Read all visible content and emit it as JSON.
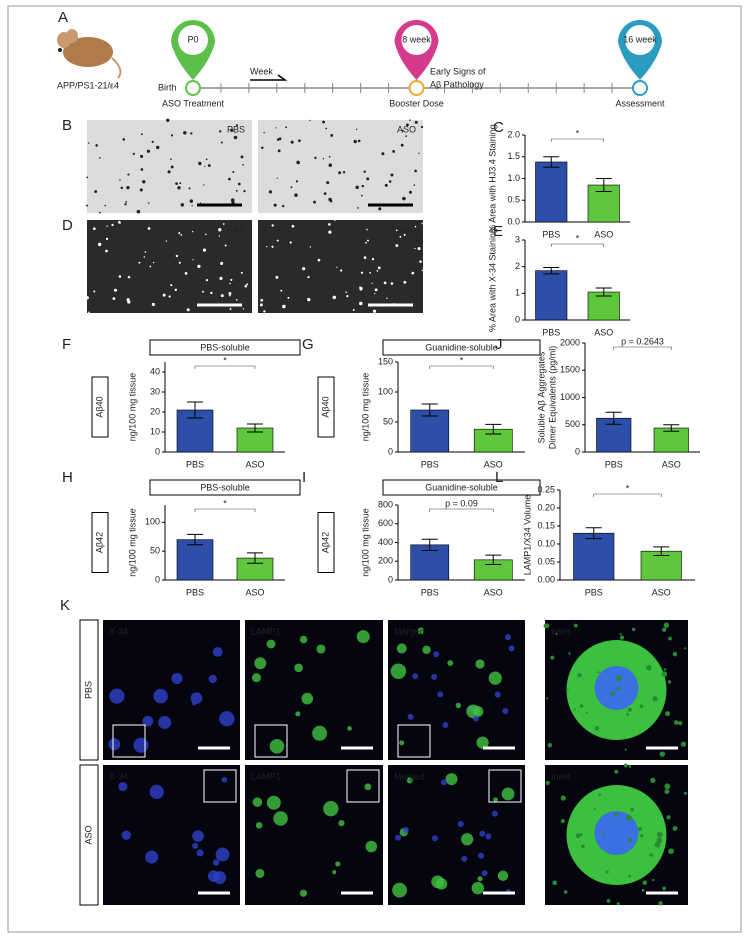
{
  "timeline": {
    "label": "A",
    "strain": "APP/PS1-21/ε4",
    "birth": "Birth",
    "week": "Week",
    "pathology": [
      "Early Signs of",
      "Aβ Pathology"
    ],
    "pins": [
      {
        "tag": "P0",
        "event": "ASO Treatment",
        "color": "#5cbf4a"
      },
      {
        "tag": "8 week",
        "event": "Booster Dose",
        "color": "#d63a8a"
      },
      {
        "tag": "16 week",
        "event": "Assessment",
        "color": "#2a9cc2"
      }
    ]
  },
  "images": {
    "B": {
      "label": "B",
      "left": "PBS",
      "right": "ASO"
    },
    "D": {
      "label": "D",
      "left": "PBS",
      "right": "ASO"
    },
    "K": {
      "label": "K",
      "rows": [
        "PBS",
        "ASO"
      ],
      "columns": [
        "X-34",
        "LAMP1",
        "Merged",
        "Inset"
      ]
    }
  },
  "chart_data": [
    {
      "type": "bar",
      "label": "C",
      "categories": [
        "PBS",
        "ASO"
      ],
      "values": [
        1.38,
        0.85
      ],
      "errors": [
        0.12,
        0.15
      ],
      "colors": [
        "#2e4fa8",
        "#5fc73c"
      ],
      "ylabel": "% Area with HJ3.4 Staining",
      "ylim": [
        0,
        2
      ],
      "yticks": [
        {
          "value": 0,
          "label": "0.0"
        },
        0.5,
        {
          "value": 1,
          "label": "1.0"
        },
        1.5,
        {
          "value": 2,
          "label": "2.0"
        }
      ],
      "annotation": "*"
    },
    {
      "type": "bar",
      "label": "E",
      "categories": [
        "PBS",
        "ASO"
      ],
      "values": [
        1.85,
        1.05
      ],
      "errors": [
        0.12,
        0.15
      ],
      "colors": [
        "#2e4fa8",
        "#5fc73c"
      ],
      "ylabel": "% Area with X-34 Staining",
      "ylim": [
        0,
        3
      ],
      "yticks": [
        0,
        1,
        2,
        3
      ],
      "annotation": "*"
    },
    {
      "type": "bar",
      "label": "F",
      "title": "PBS-soluble",
      "group": "Aβ40",
      "categories": [
        "PBS",
        "ASO"
      ],
      "values": [
        21,
        12
      ],
      "errors": [
        4,
        2
      ],
      "colors": [
        "#2e4fa8",
        "#5fc73c"
      ],
      "ylabel": "ng/100 mg tissue",
      "ylim": [
        0,
        45
      ],
      "yticks": [
        0,
        10,
        20,
        30,
        40
      ],
      "annotation": "*"
    },
    {
      "type": "bar",
      "label": "G",
      "title": "Guanidine-soluble",
      "group": "Aβ40",
      "categories": [
        "PBS",
        "ASO"
      ],
      "values": [
        70,
        38
      ],
      "errors": [
        10,
        8
      ],
      "colors": [
        "#2e4fa8",
        "#5fc73c"
      ],
      "ylabel": "ng/100 mg tissue",
      "ylim": [
        0,
        150
      ],
      "yticks": [
        0,
        50,
        100,
        150
      ],
      "annotation": "*"
    },
    {
      "type": "bar",
      "label": "J",
      "categories": [
        "PBS",
        "ASO"
      ],
      "values": [
        620,
        440
      ],
      "errors": [
        110,
        60
      ],
      "colors": [
        "#2e4fa8",
        "#5fc73c"
      ],
      "ylabel": [
        "Soluble Aβ Aggregates",
        "Dimer Equivalents (pg/ml)"
      ],
      "ylim": [
        0,
        2000
      ],
      "yticks": [
        0,
        500,
        1000,
        1500,
        2000
      ],
      "annotation": "p = 0.2643"
    },
    {
      "type": "bar",
      "label": "H",
      "title": "PBS-soluble",
      "group": "Aβ42",
      "categories": [
        "PBS",
        "ASO"
      ],
      "values": [
        70,
        38
      ],
      "errors": [
        9,
        9
      ],
      "colors": [
        "#2e4fa8",
        "#5fc73c"
      ],
      "ylabel": "ng/100 mg tissue",
      "ylim": [
        0,
        130
      ],
      "yticks": [
        0,
        50,
        100
      ],
      "annotation": "*"
    },
    {
      "type": "bar",
      "label": "I",
      "title": "Guanidine-soluble",
      "group": "Aβ42",
      "categories": [
        "PBS",
        "ASO"
      ],
      "values": [
        375,
        215
      ],
      "errors": [
        60,
        50
      ],
      "colors": [
        "#2e4fa8",
        "#5fc73c"
      ],
      "ylabel": "ng/100 mg tissue",
      "ylim": [
        0,
        800
      ],
      "yticks": [
        0,
        200,
        400,
        600,
        800
      ],
      "annotation": "p = 0.09"
    },
    {
      "type": "bar",
      "label": "L",
      "categories": [
        "PBS",
        "ASO"
      ],
      "values": [
        0.13,
        0.08
      ],
      "errors": [
        0.015,
        0.012
      ],
      "colors": [
        "#2e4fa8",
        "#5fc73c"
      ],
      "ylabel": "LAMP1/X34 Volume",
      "ylim": [
        0,
        0.25
      ],
      "yticks": [
        {
          "value": 0,
          "label": "0.00"
        },
        0.05,
        {
          "value": 0.1,
          "label": "0.10"
        },
        0.15,
        {
          "value": 0.2,
          "label": "0.20"
        },
        0.25
      ],
      "annotation": "*"
    }
  ]
}
